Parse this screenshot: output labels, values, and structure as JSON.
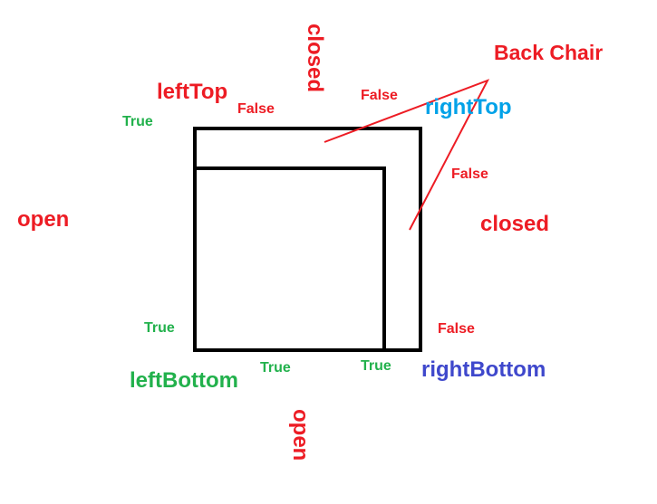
{
  "title": "Back Chair",
  "corners": {
    "left_top": "leftTop",
    "right_top": "rightTop",
    "left_bottom": "leftBottom",
    "right_bottom": "rightBottom"
  },
  "sides": {
    "top": "closed",
    "right": "closed",
    "left": "open",
    "bottom": "open"
  },
  "flags": {
    "left_top_outer": "True",
    "left_top_inner": "False",
    "right_top_inner": "False",
    "right_top_side": "False",
    "left_bottom_side": "True",
    "left_bottom_bottom": "True",
    "inner_bottom": "True",
    "right_bottom_side": "False"
  },
  "colors": {
    "closed_false": "#ed1c24",
    "open_true": "#22b14c",
    "right_top": "#00a2e8",
    "right_bottom": "#3f48cc",
    "shape": "#000000"
  }
}
